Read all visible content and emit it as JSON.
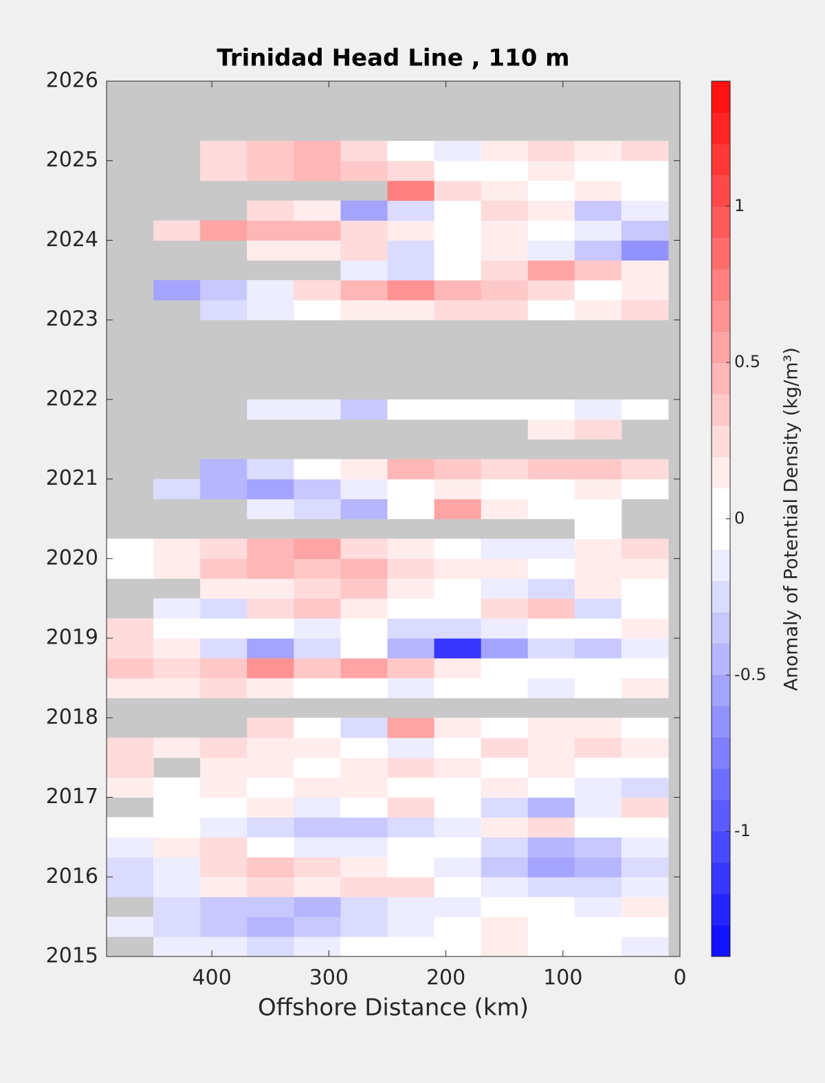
{
  "chart_data": {
    "type": "contour",
    "title": "Trinidad Head Line , 110 m",
    "x_label": "Offshore Distance (km)",
    "colorbar_label": "Anomaly of Potential Density (kg/m³)",
    "xlim": [
      490,
      0
    ],
    "xticks": [
      400,
      300,
      200,
      100,
      0
    ],
    "ylim": [
      2015,
      2026
    ],
    "yticks": [
      2015,
      2016,
      2017,
      2018,
      2019,
      2020,
      2021,
      2022,
      2023,
      2024,
      2025,
      2026
    ],
    "clim": [
      -1.4,
      1.4
    ],
    "cticks": [
      -1,
      -0.5,
      0,
      0.5,
      1
    ],
    "level_step": 0.1,
    "positive_color": "#ff0000",
    "negative_color": "#0000ff",
    "missing_color": "#c8c8c8",
    "x": [
      470,
      430,
      390,
      350,
      310,
      270,
      230,
      190,
      150,
      110,
      70,
      30
    ],
    "y": [
      2015.125,
      2015.375,
      2015.625,
      2015.875,
      2016.125,
      2016.375,
      2016.625,
      2016.875,
      2017.125,
      2017.375,
      2017.625,
      2017.875,
      2018.125,
      2018.375,
      2018.625,
      2018.875,
      2019.125,
      2019.375,
      2019.625,
      2019.875,
      2020.125,
      2020.375,
      2020.625,
      2020.875,
      2021.125,
      2021.375,
      2021.625,
      2021.875,
      2022.125,
      2022.375,
      2022.625,
      2022.875,
      2023.125,
      2023.375,
      2023.625,
      2023.875,
      2024.125,
      2024.375,
      2024.625,
      2024.875,
      2025.125,
      2025.375,
      2025.625,
      2025.875
    ],
    "z": [
      [
        null,
        -0.1,
        -0.1,
        -0.2,
        -0.1,
        0,
        0,
        0,
        0.1,
        0,
        0,
        -0.1
      ],
      [
        -0.1,
        -0.2,
        -0.3,
        -0.4,
        -0.3,
        -0.2,
        -0.1,
        0,
        0.1,
        0,
        0,
        0
      ],
      [
        null,
        -0.2,
        -0.3,
        -0.3,
        -0.4,
        -0.2,
        -0.1,
        -0.1,
        0,
        0,
        -0.1,
        0.1
      ],
      [
        -0.2,
        -0.1,
        0.1,
        0.2,
        0.1,
        0.2,
        0.2,
        0,
        -0.1,
        -0.2,
        -0.2,
        -0.1
      ],
      [
        -0.2,
        -0.1,
        0.2,
        0.3,
        0.2,
        0.1,
        0,
        -0.1,
        -0.3,
        -0.5,
        -0.4,
        -0.2
      ],
      [
        -0.1,
        0.1,
        0.2,
        0,
        -0.1,
        -0.1,
        0,
        0,
        -0.2,
        -0.4,
        -0.3,
        -0.1
      ],
      [
        0,
        0,
        -0.1,
        -0.2,
        -0.3,
        -0.3,
        -0.2,
        -0.1,
        0.1,
        0.2,
        0,
        0
      ],
      [
        null,
        0,
        0,
        0.1,
        -0.1,
        0,
        0.2,
        0,
        -0.2,
        -0.4,
        -0.1,
        0.2
      ],
      [
        0.1,
        0,
        0.1,
        0,
        0.1,
        0.1,
        0,
        0,
        0.1,
        0,
        -0.1,
        -0.2
      ],
      [
        0.2,
        null,
        0.1,
        0.1,
        0,
        0.1,
        0.2,
        0.1,
        0,
        0.1,
        0,
        0
      ],
      [
        0.2,
        0.1,
        0.2,
        0.1,
        0.1,
        0,
        -0.1,
        0,
        0.2,
        0.1,
        0.2,
        0.1
      ],
      [
        null,
        null,
        null,
        0.2,
        0,
        -0.2,
        0.5,
        0.1,
        0,
        0.1,
        0.1,
        0
      ],
      [
        null,
        null,
        null,
        null,
        null,
        null,
        null,
        null,
        null,
        null,
        null,
        null
      ],
      [
        0.1,
        0.1,
        0.2,
        0.1,
        0,
        0,
        -0.1,
        0,
        0,
        -0.1,
        0,
        0.1
      ],
      [
        0.3,
        0.2,
        0.3,
        0.6,
        0.3,
        0.5,
        0.3,
        0.1,
        0,
        0,
        0,
        0
      ],
      [
        0.2,
        0.1,
        -0.2,
        -0.5,
        -0.2,
        0,
        -0.4,
        -1.1,
        -0.5,
        -0.2,
        -0.3,
        -0.1
      ],
      [
        0.2,
        0,
        0,
        0,
        -0.1,
        0,
        -0.2,
        -0.2,
        -0.1,
        0,
        0,
        0.1
      ],
      [
        null,
        -0.1,
        -0.2,
        0.2,
        0.3,
        0.1,
        0,
        0,
        0.2,
        0.3,
        -0.2,
        0
      ],
      [
        null,
        null,
        0.1,
        0.1,
        0.2,
        0.3,
        0.1,
        0,
        -0.1,
        -0.2,
        0.1,
        0
      ],
      [
        0,
        0.1,
        0.3,
        0.4,
        0.3,
        0.4,
        0.2,
        0.1,
        0.1,
        0,
        0.1,
        0.1
      ],
      [
        0,
        0.1,
        0.2,
        0.4,
        0.5,
        0.2,
        0.1,
        0,
        -0.1,
        -0.1,
        0.1,
        0.2
      ],
      [
        null,
        null,
        null,
        null,
        null,
        null,
        null,
        null,
        null,
        null,
        0,
        null
      ],
      [
        null,
        null,
        null,
        -0.1,
        -0.2,
        -0.4,
        0,
        0.5,
        0.1,
        0,
        0,
        null
      ],
      [
        null,
        -0.2,
        -0.4,
        -0.5,
        -0.3,
        -0.1,
        0,
        0.1,
        0,
        0,
        0.1,
        0
      ],
      [
        null,
        null,
        -0.4,
        -0.2,
        0,
        0.1,
        0.4,
        0.3,
        0.2,
        0.3,
        0.3,
        0.2
      ],
      [
        null,
        null,
        null,
        null,
        null,
        null,
        null,
        null,
        null,
        null,
        null,
        null
      ],
      [
        null,
        null,
        null,
        null,
        null,
        null,
        null,
        null,
        null,
        0.1,
        0.2,
        null
      ],
      [
        null,
        null,
        null,
        -0.1,
        -0.1,
        -0.3,
        0,
        0,
        0,
        0,
        -0.1,
        0
      ],
      [
        null,
        null,
        null,
        null,
        null,
        null,
        null,
        null,
        null,
        null,
        null,
        null
      ],
      [
        null,
        null,
        null,
        null,
        null,
        null,
        null,
        null,
        null,
        null,
        null,
        null
      ],
      [
        null,
        null,
        null,
        null,
        null,
        null,
        null,
        null,
        null,
        null,
        null,
        null
      ],
      [
        null,
        null,
        null,
        null,
        null,
        null,
        null,
        null,
        null,
        null,
        null,
        null
      ],
      [
        null,
        null,
        -0.2,
        -0.1,
        0,
        0.1,
        0.1,
        0.2,
        0.2,
        0,
        0.1,
        0.2
      ],
      [
        null,
        -0.5,
        -0.3,
        -0.1,
        0.2,
        0.4,
        0.6,
        0.4,
        0.3,
        0.2,
        0,
        0.1
      ],
      [
        null,
        null,
        null,
        null,
        null,
        -0.1,
        -0.2,
        0,
        0.2,
        0.5,
        0.3,
        0.1
      ],
      [
        null,
        null,
        null,
        0.1,
        0.1,
        0.2,
        -0.2,
        0,
        0.1,
        -0.1,
        -0.3,
        -0.6
      ],
      [
        null,
        0.2,
        0.5,
        0.4,
        0.4,
        0.2,
        0.1,
        0,
        0.1,
        0,
        -0.1,
        -0.3
      ],
      [
        null,
        null,
        null,
        0.2,
        0.1,
        -0.5,
        -0.2,
        0,
        0.2,
        0.1,
        -0.3,
        -0.1
      ],
      [
        null,
        null,
        null,
        null,
        null,
        null,
        0.7,
        0.2,
        0.1,
        0,
        0.1,
        0
      ],
      [
        null,
        null,
        0.2,
        0.3,
        0.4,
        0.3,
        0.2,
        0,
        0,
        0.1,
        0,
        0
      ],
      [
        null,
        null,
        0.2,
        0.3,
        0.4,
        0.2,
        0,
        -0.1,
        0.1,
        0.2,
        0.1,
        0.2
      ],
      [
        null,
        null,
        null,
        null,
        null,
        null,
        null,
        null,
        null,
        null,
        null,
        null
      ],
      [
        null,
        null,
        null,
        null,
        null,
        null,
        null,
        null,
        null,
        null,
        null,
        null
      ],
      [
        null,
        null,
        null,
        null,
        null,
        null,
        null,
        null,
        null,
        null,
        null,
        null
      ]
    ]
  }
}
